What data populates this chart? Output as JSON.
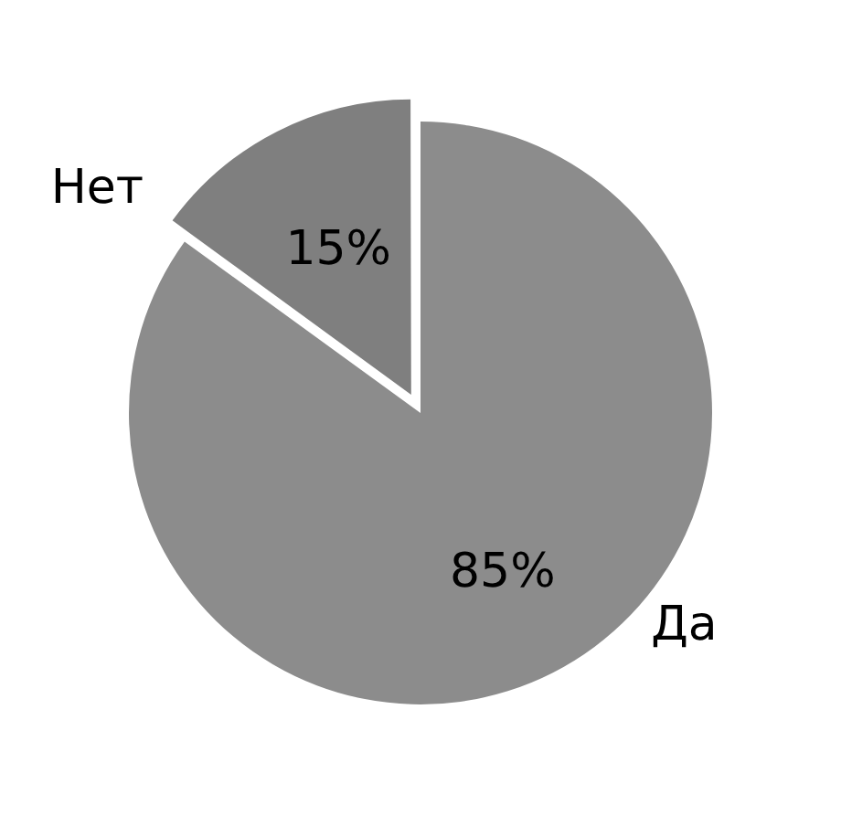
{
  "chart_data": {
    "type": "pie",
    "categories": [
      "Да",
      "Нет"
    ],
    "values": [
      85,
      15
    ],
    "colors": [
      "#8c8c8c",
      "#7f7f7f"
    ],
    "value_labels": [
      "85%",
      "15%"
    ],
    "legend": false
  }
}
